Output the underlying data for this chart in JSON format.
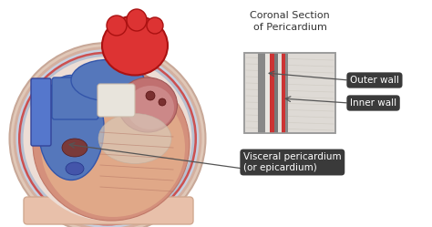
{
  "bg_color": "#ffffff",
  "title_text": "Coronal Section\nof Pericardium",
  "label_outer": "Outer wall",
  "label_inner": "Inner wall",
  "label_visceral": "Visceral pericardium\n(or epicardium)",
  "label_bg": "#3a3a3a",
  "label_fg": "#ffffff",
  "heart_pink": "#e8b0a0",
  "heart_pink_light": "#f0c8b8",
  "heart_pink_inner": "#d49080",
  "heart_blue": "#5577bb",
  "heart_blue_dark": "#3355aa",
  "heart_red": "#dd3333",
  "heart_red_dark": "#aa1111",
  "heart_muscle": "#c07878",
  "peri_color1": "#e8ccc0",
  "peri_color2": "#dbb8a8",
  "peri_blue_line": "#aabbdd",
  "peri_red_line": "#cc4444",
  "section_bg": "#e0ddd8",
  "section_outer_gray": "#b8b8b8",
  "section_dark1": "#555555",
  "section_red": "#cc3333",
  "section_dark2": "#666666",
  "section_inner_light": "#e8e4e0",
  "base_color": "#e8c8b8",
  "white": "#f5f5f8",
  "line_color": "#888888"
}
